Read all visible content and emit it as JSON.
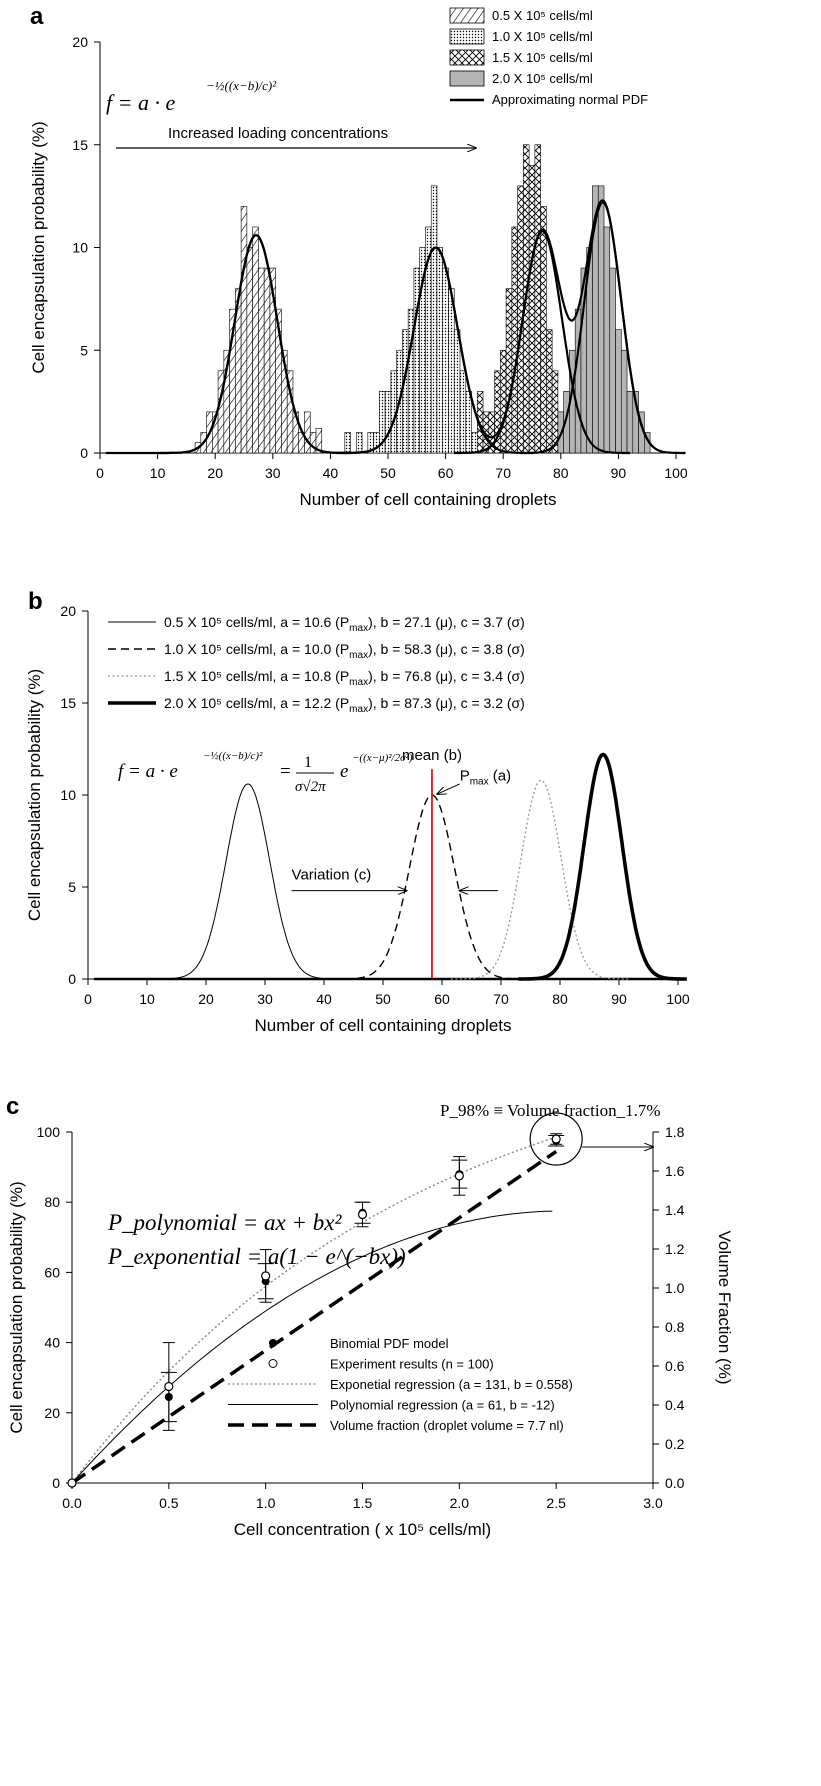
{
  "chart_data": [
    {
      "panel_label": "a",
      "type": "bar",
      "ylabel": "Cell encapsulation probability (%)",
      "xlabel": "Number of cell containing droplets",
      "xlim": [
        0,
        100
      ],
      "ylim": [
        0,
        20
      ],
      "xticks": [
        0,
        10,
        20,
        30,
        40,
        50,
        60,
        70,
        80,
        90,
        100
      ],
      "yticks": [
        0,
        5,
        10,
        15,
        20
      ],
      "annotation_formula": "f = a · e^(-1/2((x-b)/c)^2)",
      "annotation_arrow_text": "Increased loading concentrations",
      "legend": [
        "0.5 X 10⁵ cells/ml",
        "1.0 X 10⁵ cells/ml",
        "1.5 X 10⁵ cells/ml",
        "2.0 X 10⁵ cells/ml",
        "Approximating normal PDF"
      ],
      "legend_placement": "top-right",
      "series": [
        {
          "name": "0.5 X 10⁵ cells/ml",
          "pattern": "diagonal-lines",
          "x": [
            17,
            18,
            19,
            20,
            21,
            22,
            23,
            24,
            25,
            26,
            27,
            28,
            29,
            30,
            31,
            32,
            33,
            34,
            35,
            36,
            37,
            38
          ],
          "values": [
            0.5,
            1,
            2,
            2,
            4,
            5,
            7,
            8,
            12,
            10,
            11,
            9,
            9,
            9,
            7,
            5,
            4,
            2,
            1,
            2,
            1,
            1.2
          ]
        },
        {
          "name": "1.0 X 10⁵ cells/ml",
          "pattern": "dots",
          "x": [
            43,
            45,
            47,
            48,
            49,
            50,
            51,
            52,
            53,
            54,
            55,
            56,
            57,
            58,
            59,
            60,
            61,
            62,
            63,
            64,
            65
          ],
          "values": [
            1,
            1,
            1,
            1,
            3,
            3,
            4,
            5,
            6,
            7,
            9,
            10,
            11,
            13,
            10,
            9,
            8,
            6,
            4,
            3,
            1
          ]
        },
        {
          "name": "1.5 X 10⁵ cells/ml",
          "pattern": "crosshatch",
          "x": [
            66,
            67,
            68,
            69,
            70,
            71,
            72,
            73,
            74,
            75,
            76,
            77,
            78,
            79,
            80
          ],
          "values": [
            3,
            2,
            2,
            4,
            5,
            8,
            11,
            13,
            15,
            14,
            15,
            12,
            6,
            4,
            2
          ]
        },
        {
          "name": "2.0 X 10⁵ cells/ml",
          "pattern": "gray",
          "x": [
            80,
            81,
            82,
            83,
            84,
            85,
            86,
            87,
            88,
            89,
            90,
            91,
            92,
            93,
            94,
            95
          ],
          "values": [
            2,
            3,
            5,
            7,
            9,
            10,
            13,
            13,
            11,
            9,
            6,
            5,
            3,
            3,
            2,
            1
          ]
        }
      ],
      "curves": [
        {
          "a": 10.6,
          "b": 27.1,
          "c": 3.7
        },
        {
          "a": 10.0,
          "b": 58.3,
          "c": 3.8
        },
        {
          "a": 10.8,
          "b": 76.8,
          "c": 3.4
        },
        {
          "a": 12.2,
          "b": 87.3,
          "c": 3.2
        }
      ],
      "colors": {
        "gray_fill": "#b5b5b5",
        "line": "#000000"
      }
    },
    {
      "panel_label": "b",
      "type": "line",
      "ylabel": "Cell encapsulation probability (%)",
      "xlabel": "Number of cell containing droplets",
      "xlim": [
        0,
        100
      ],
      "ylim": [
        0,
        20
      ],
      "xticks": [
        0,
        10,
        20,
        30,
        40,
        50,
        60,
        70,
        80,
        90,
        100
      ],
      "yticks": [
        0,
        5,
        10,
        15,
        20
      ],
      "legend_placement": "top",
      "series": [
        {
          "name": "0.5 X 10⁵ cells/ml, a = 10.6 (Pmax), b = 27.1 (μ), c = 3.7 (σ)",
          "a": 10.6,
          "b": 27.1,
          "c": 3.7,
          "style": "solid-thin"
        },
        {
          "name": "1.0 X 10⁵ cells/ml, a = 10.0 (Pmax), b = 58.3 (μ), c = 3.8 (σ)",
          "a": 10.0,
          "b": 58.3,
          "c": 3.8,
          "style": "dashed"
        },
        {
          "name": "1.5 X 10⁵ cells/ml, a = 10.8 (Pmax), b = 76.8 (μ), c = 3.4 (σ)",
          "a": 10.8,
          "b": 76.8,
          "c": 3.4,
          "style": "dotted-gray"
        },
        {
          "name": "2.0 X 10⁵ cells/ml, a = 12.2 (Pmax), b = 87.3 (μ), c = 3.2 (σ)",
          "a": 12.2,
          "b": 87.3,
          "c": 3.2,
          "style": "solid-thick"
        }
      ],
      "annotations": {
        "mean": "mean (b)",
        "pmax": "P",
        "pmax_sub": "max",
        "pmax_suffix": " (a)",
        "variation": "Variation (c)"
      },
      "mean_line_x": 58.3,
      "colors": {
        "mean_line": "#d00000"
      }
    },
    {
      "panel_label": "c",
      "type": "scatter",
      "ylabel": "Cell encapsulation probability (%)",
      "y2label": "Volume Fraction (%)",
      "xlabel": "Cell concentration ( x 10⁵ cells/ml)",
      "xlim": [
        0,
        3.0
      ],
      "ylim": [
        0,
        100
      ],
      "y2lim": [
        0,
        1.8
      ],
      "xticks": [
        "0.0",
        "0.5",
        "1.0",
        "1.5",
        "2.0",
        "2.5",
        "3.0"
      ],
      "yticks": [
        0,
        20,
        40,
        60,
        80,
        100
      ],
      "y2ticks": [
        "0.0",
        "0.2",
        "0.4",
        "0.6",
        "0.8",
        "1.0",
        "1.2",
        "1.4",
        "1.6",
        "1.8"
      ],
      "formula_poly": "P_polynomial = ax + bx²",
      "formula_exp": "P_exponential = a(1 − e^(−bx))",
      "annotation_top": "P_98% ≡ Volume fraction_1.7%",
      "legend_placement": "bottom-right",
      "series": [
        {
          "name": "Binomial PDF model",
          "x": [
            0,
            0.5,
            1.0,
            1.5,
            2.0,
            2.5
          ],
          "values": [
            0,
            24.5,
            57.5,
            77,
            88,
            97.5
          ],
          "marker": "filled-circle"
        },
        {
          "name": "Experiment results (n = 100)",
          "x": [
            0,
            0.5,
            1.0,
            1.5,
            2.0,
            2.5
          ],
          "values": [
            0,
            27.5,
            59,
            76.5,
            87.5,
            98
          ],
          "errors": [
            0,
            12.5,
            7.5,
            3.5,
            5.5,
            1.5
          ],
          "marker": "open-circle"
        },
        {
          "name": "Exponetial regression (a = 131, b = 0.558)",
          "type": "curve",
          "a": 131,
          "b": 0.558,
          "style": "dotted"
        },
        {
          "name": "Polynomial regression (a = 61, b = -12)",
          "type": "curve",
          "a": 61,
          "b": -12,
          "style": "solid"
        },
        {
          "name": "Volume fraction (droplet volume = 7.7 nl)",
          "type": "line",
          "x": [
            0,
            2.5
          ],
          "y2": [
            0,
            1.7
          ],
          "style": "thick-dashed"
        }
      ],
      "binomial_error_bars": [
        0,
        7,
        5,
        3,
        4,
        1.5
      ]
    }
  ]
}
